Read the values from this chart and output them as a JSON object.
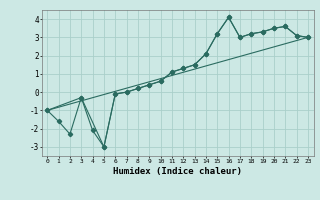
{
  "title": "",
  "xlabel": "Humidex (Indice chaleur)",
  "ylabel": "",
  "bg_color": "#cce8e4",
  "grid_color": "#aacfca",
  "line_color": "#2a6b60",
  "xlim": [
    -0.5,
    23.5
  ],
  "ylim": [
    -3.5,
    4.5
  ],
  "xticks": [
    0,
    1,
    2,
    3,
    4,
    5,
    6,
    7,
    8,
    9,
    10,
    11,
    12,
    13,
    14,
    15,
    16,
    17,
    18,
    19,
    20,
    21,
    22,
    23
  ],
  "yticks": [
    -3,
    -2,
    -1,
    0,
    1,
    2,
    3,
    4
  ],
  "series1_x": [
    0,
    1,
    2,
    3,
    4,
    5,
    6,
    7,
    8,
    9,
    10,
    11,
    12,
    13,
    14,
    15,
    16,
    17,
    18,
    19,
    20,
    21,
    22,
    23
  ],
  "series1_y": [
    -1.0,
    -1.6,
    -2.3,
    -0.3,
    -2.1,
    -3.0,
    -0.1,
    0.0,
    0.2,
    0.4,
    0.6,
    1.1,
    1.3,
    1.5,
    2.1,
    3.2,
    4.1,
    3.0,
    3.2,
    3.3,
    3.5,
    3.6,
    3.1,
    3.0
  ],
  "series2_x": [
    0,
    3,
    5,
    6,
    7,
    8,
    9,
    10,
    11,
    12,
    13,
    14,
    15,
    16,
    17,
    18,
    19,
    20,
    21,
    22,
    23
  ],
  "series2_y": [
    -1.0,
    -0.3,
    -3.0,
    -0.1,
    0.0,
    0.2,
    0.4,
    0.6,
    1.1,
    1.3,
    1.5,
    2.1,
    3.2,
    4.1,
    3.0,
    3.2,
    3.3,
    3.5,
    3.6,
    3.1,
    3.0
  ],
  "series3_x": [
    0,
    23
  ],
  "series3_y": [
    -1.0,
    3.0
  ],
  "marker_size": 2.2,
  "line_width": 0.8
}
